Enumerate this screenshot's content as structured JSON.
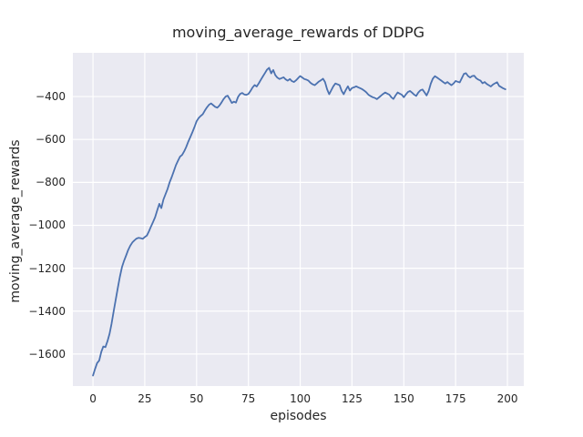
{
  "figure": {
    "background": "#ffffff"
  },
  "chart_data": {
    "type": "line",
    "title": "moving_average_rewards of DDPG",
    "xlabel": "episodes",
    "ylabel": "moving_average_rewards",
    "style": "seaborn-darkgrid",
    "grid": true,
    "legend": false,
    "plot_background": "#eaeaf2",
    "grid_color": "#ffffff",
    "line_color": "#4c72b0",
    "text_color": "#262626",
    "x_ticks": [
      0,
      25,
      50,
      75,
      100,
      125,
      150,
      175,
      200
    ],
    "y_ticks": [
      -400,
      -600,
      -800,
      -1000,
      -1200,
      -1400,
      -1600
    ],
    "xlim": [
      -9.7,
      207.9
    ],
    "ylim": [
      -1749,
      -196
    ],
    "x_start": 0,
    "x_step": 1,
    "values": [
      -1700,
      -1670,
      -1642,
      -1630,
      -1590,
      -1565,
      -1568,
      -1540,
      -1505,
      -1458,
      -1400,
      -1345,
      -1290,
      -1240,
      -1195,
      -1165,
      -1140,
      -1115,
      -1095,
      -1080,
      -1070,
      -1062,
      -1058,
      -1060,
      -1063,
      -1055,
      -1048,
      -1028,
      -1005,
      -985,
      -962,
      -930,
      -900,
      -920,
      -880,
      -855,
      -830,
      -800,
      -775,
      -748,
      -720,
      -700,
      -680,
      -672,
      -655,
      -635,
      -610,
      -588,
      -565,
      -542,
      -515,
      -500,
      -490,
      -482,
      -465,
      -450,
      -438,
      -432,
      -440,
      -448,
      -452,
      -442,
      -428,
      -412,
      -400,
      -396,
      -412,
      -430,
      -424,
      -428,
      -402,
      -388,
      -383,
      -390,
      -392,
      -388,
      -374,
      -358,
      -346,
      -353,
      -338,
      -322,
      -306,
      -290,
      -274,
      -266,
      -292,
      -276,
      -300,
      -312,
      -318,
      -314,
      -310,
      -320,
      -326,
      -318,
      -328,
      -332,
      -324,
      -314,
      -304,
      -311,
      -318,
      -321,
      -326,
      -336,
      -343,
      -347,
      -339,
      -330,
      -324,
      -317,
      -332,
      -366,
      -389,
      -370,
      -352,
      -339,
      -343,
      -347,
      -373,
      -389,
      -369,
      -352,
      -372,
      -360,
      -357,
      -352,
      -357,
      -361,
      -366,
      -373,
      -381,
      -392,
      -398,
      -403,
      -406,
      -412,
      -404,
      -396,
      -388,
      -381,
      -386,
      -391,
      -403,
      -411,
      -395,
      -381,
      -386,
      -391,
      -403,
      -390,
      -379,
      -374,
      -382,
      -391,
      -397,
      -381,
      -371,
      -367,
      -380,
      -395,
      -374,
      -340,
      -317,
      -305,
      -311,
      -318,
      -325,
      -332,
      -339,
      -332,
      -340,
      -347,
      -339,
      -327,
      -331,
      -334,
      -314,
      -294,
      -291,
      -304,
      -311,
      -304,
      -303,
      -315,
      -321,
      -326,
      -338,
      -332,
      -341,
      -347,
      -353,
      -344,
      -338,
      -333,
      -350,
      -356,
      -362,
      -366
    ]
  }
}
